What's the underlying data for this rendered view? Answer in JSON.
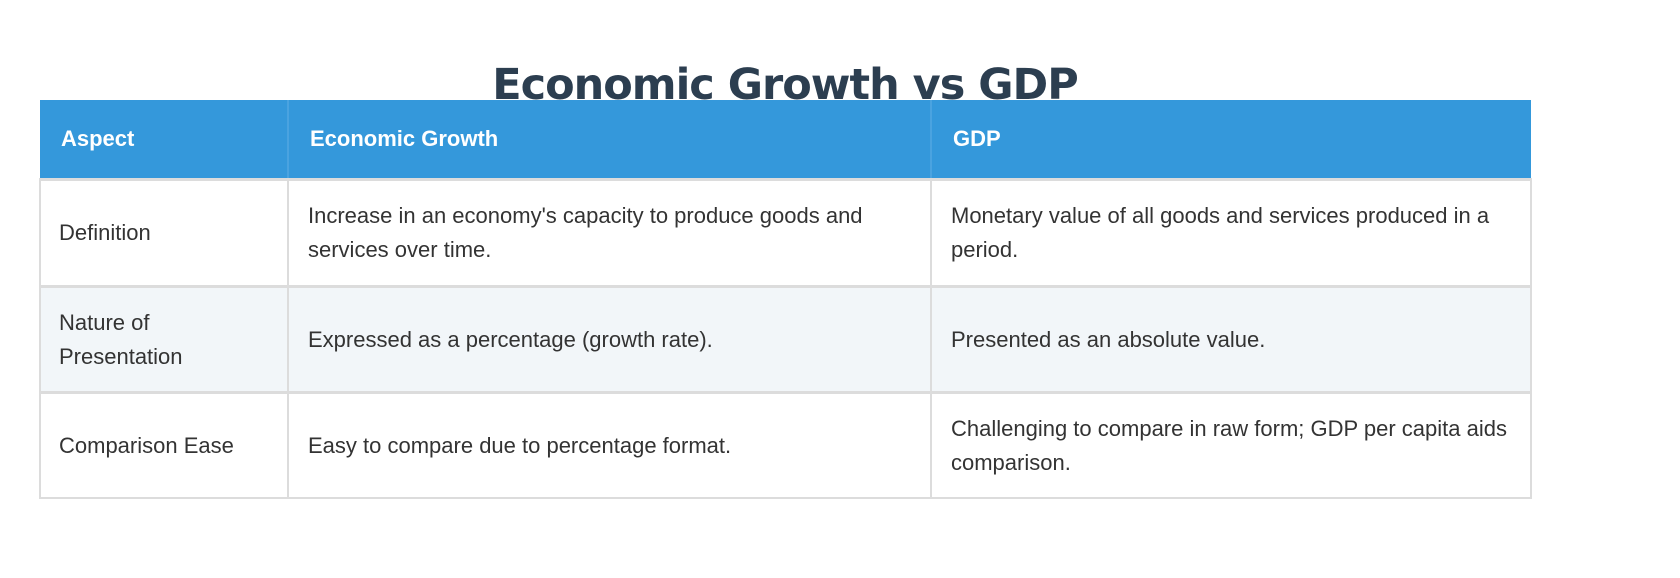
{
  "title": "Economic Growth vs GDP",
  "table": {
    "headers": [
      "Aspect",
      "Economic Growth",
      "GDP"
    ],
    "rows": [
      [
        "Definition",
        "Increase in an economy's capacity to produce goods and services over time.",
        "Monetary value of all goods and services produced in a period."
      ],
      [
        "Nature of Presentation",
        "Expressed as a percentage (growth rate).",
        "Presented as an absolute value."
      ],
      [
        "Comparison Ease",
        "Easy to compare due to percentage format.",
        "Challenging to compare in raw form; GDP per capita aids comparison."
      ]
    ]
  },
  "colors": {
    "header_bg": "#3498db",
    "title": "#2c3e50",
    "alt_row_bg": "#f2f6f9",
    "text": "#333333"
  }
}
